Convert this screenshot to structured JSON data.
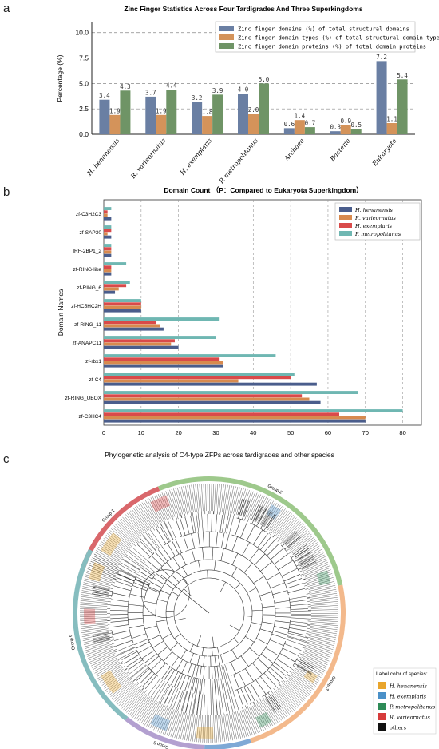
{
  "panels": {
    "a": "a",
    "b": "b",
    "c": "c"
  },
  "chart_data": [
    {
      "type": "bar",
      "title": "Zinc Finger Statistics Across Four Tardigrades And Three Superkingdoms",
      "ylabel": "Percentage (%)",
      "xlabel": "",
      "ylim": [
        0,
        11
      ],
      "yticks": [
        "0.0",
        "2.5",
        "5.0",
        "7.5",
        "10.0"
      ],
      "grid": "dashed-horizontal",
      "legend_placement": "top-right",
      "categories": [
        "H. henanensis",
        "R. varieornatus",
        "H. exemplaris",
        "P. metropolitanus",
        "Archaea",
        "Bacteria",
        "Eukaryota"
      ],
      "series": [
        {
          "name": "Zinc finger domains (%) of total structural domains",
          "color": "#6a7fa3",
          "values": [
            3.4,
            3.7,
            3.2,
            4.0,
            0.6,
            0.3,
            7.2
          ],
          "labels": [
            "3.4",
            "3.7",
            "3.2",
            "4.0",
            "0.6",
            "0.3",
            "7.2"
          ]
        },
        {
          "name": "Zinc finger domain types (%) of total structural domain types",
          "color": "#d4935a",
          "values": [
            1.9,
            1.9,
            1.8,
            2.0,
            1.4,
            0.9,
            1.1
          ],
          "labels": [
            "1.9",
            "1.9",
            "1.8",
            "2.0",
            "1.4",
            "0.9",
            "1.1"
          ]
        },
        {
          "name": "Zinc finger domain proteins (%) of total domain proteins",
          "color": "#6f9466",
          "values": [
            4.3,
            4.4,
            3.9,
            5.0,
            0.7,
            0.5,
            5.4
          ],
          "labels": [
            "4.3",
            "4.4",
            "3.9",
            "5.0",
            "0.7",
            "0.5",
            "5.4"
          ]
        }
      ]
    },
    {
      "type": "bar",
      "orientation": "horizontal",
      "title": "Domain Count （P：Compared to Eukaryota Superkingdom）",
      "ylabel": "Domain Names",
      "xlabel": "",
      "xlim": [
        0,
        85
      ],
      "xticks": [
        "0",
        "10",
        "20",
        "30",
        "40",
        "50",
        "60",
        "70",
        "80"
      ],
      "grid": "dashed-vertical",
      "legend_placement": "top-right",
      "categories": [
        "zf-C3H2C3",
        "zf-SAP30",
        "IRF-2BP1_2",
        "zf-RING-like",
        "zf-RING_6",
        "zf-HC5HC2H",
        "zf-RING_11",
        "zf-ANAPC11",
        "zf-rbx1",
        "zf-C4",
        "zf-RING_UBOX",
        "zf-C3HC4"
      ],
      "series": [
        {
          "name": "H. henanensis",
          "color": "#4a5d8c",
          "values": [
            2,
            2,
            2,
            2,
            3,
            10,
            16,
            20,
            32,
            57,
            58,
            70
          ]
        },
        {
          "name": "R. varieornatus",
          "color": "#d88a4e",
          "values": [
            1,
            1,
            2,
            2,
            4,
            10,
            15,
            18,
            32,
            36,
            55,
            70
          ]
        },
        {
          "name": "H. exemplaris",
          "color": "#d94a4a",
          "values": [
            1,
            2,
            2,
            2,
            6,
            10,
            14,
            19,
            31,
            50,
            53,
            63
          ]
        },
        {
          "name": "P. metropolitanus",
          "color": "#6fb7b2",
          "values": [
            2,
            2,
            2,
            6,
            7,
            10,
            31,
            30,
            46,
            51,
            68,
            80
          ]
        }
      ]
    },
    {
      "type": "tree",
      "title": "Phylogenetic analysis of C4-type ZFPs across tardigrades and other species",
      "groups": [
        {
          "name": "Group 1",
          "color": "#d9676b"
        },
        {
          "name": "Group 2",
          "color": "#9ec98c"
        },
        {
          "name": "Group 3",
          "color": "#f3b98c"
        },
        {
          "name": "Group 4",
          "color": "#7ea9d6"
        },
        {
          "name": "Group 5",
          "color": "#b3a0d0"
        },
        {
          "name": "Group 6",
          "color": "#86bdbf"
        }
      ],
      "legend_title": "Label color of species:",
      "legend": [
        {
          "name": "H. henanensis",
          "color": "#e9a52c"
        },
        {
          "name": "H. exemplaris",
          "color": "#4a90c8"
        },
        {
          "name": "P. metropolitanus",
          "color": "#2e8b57"
        },
        {
          "name": "R. varieornatus",
          "color": "#d63b3b"
        },
        {
          "name": "others",
          "color": "#111111"
        }
      ]
    }
  ]
}
